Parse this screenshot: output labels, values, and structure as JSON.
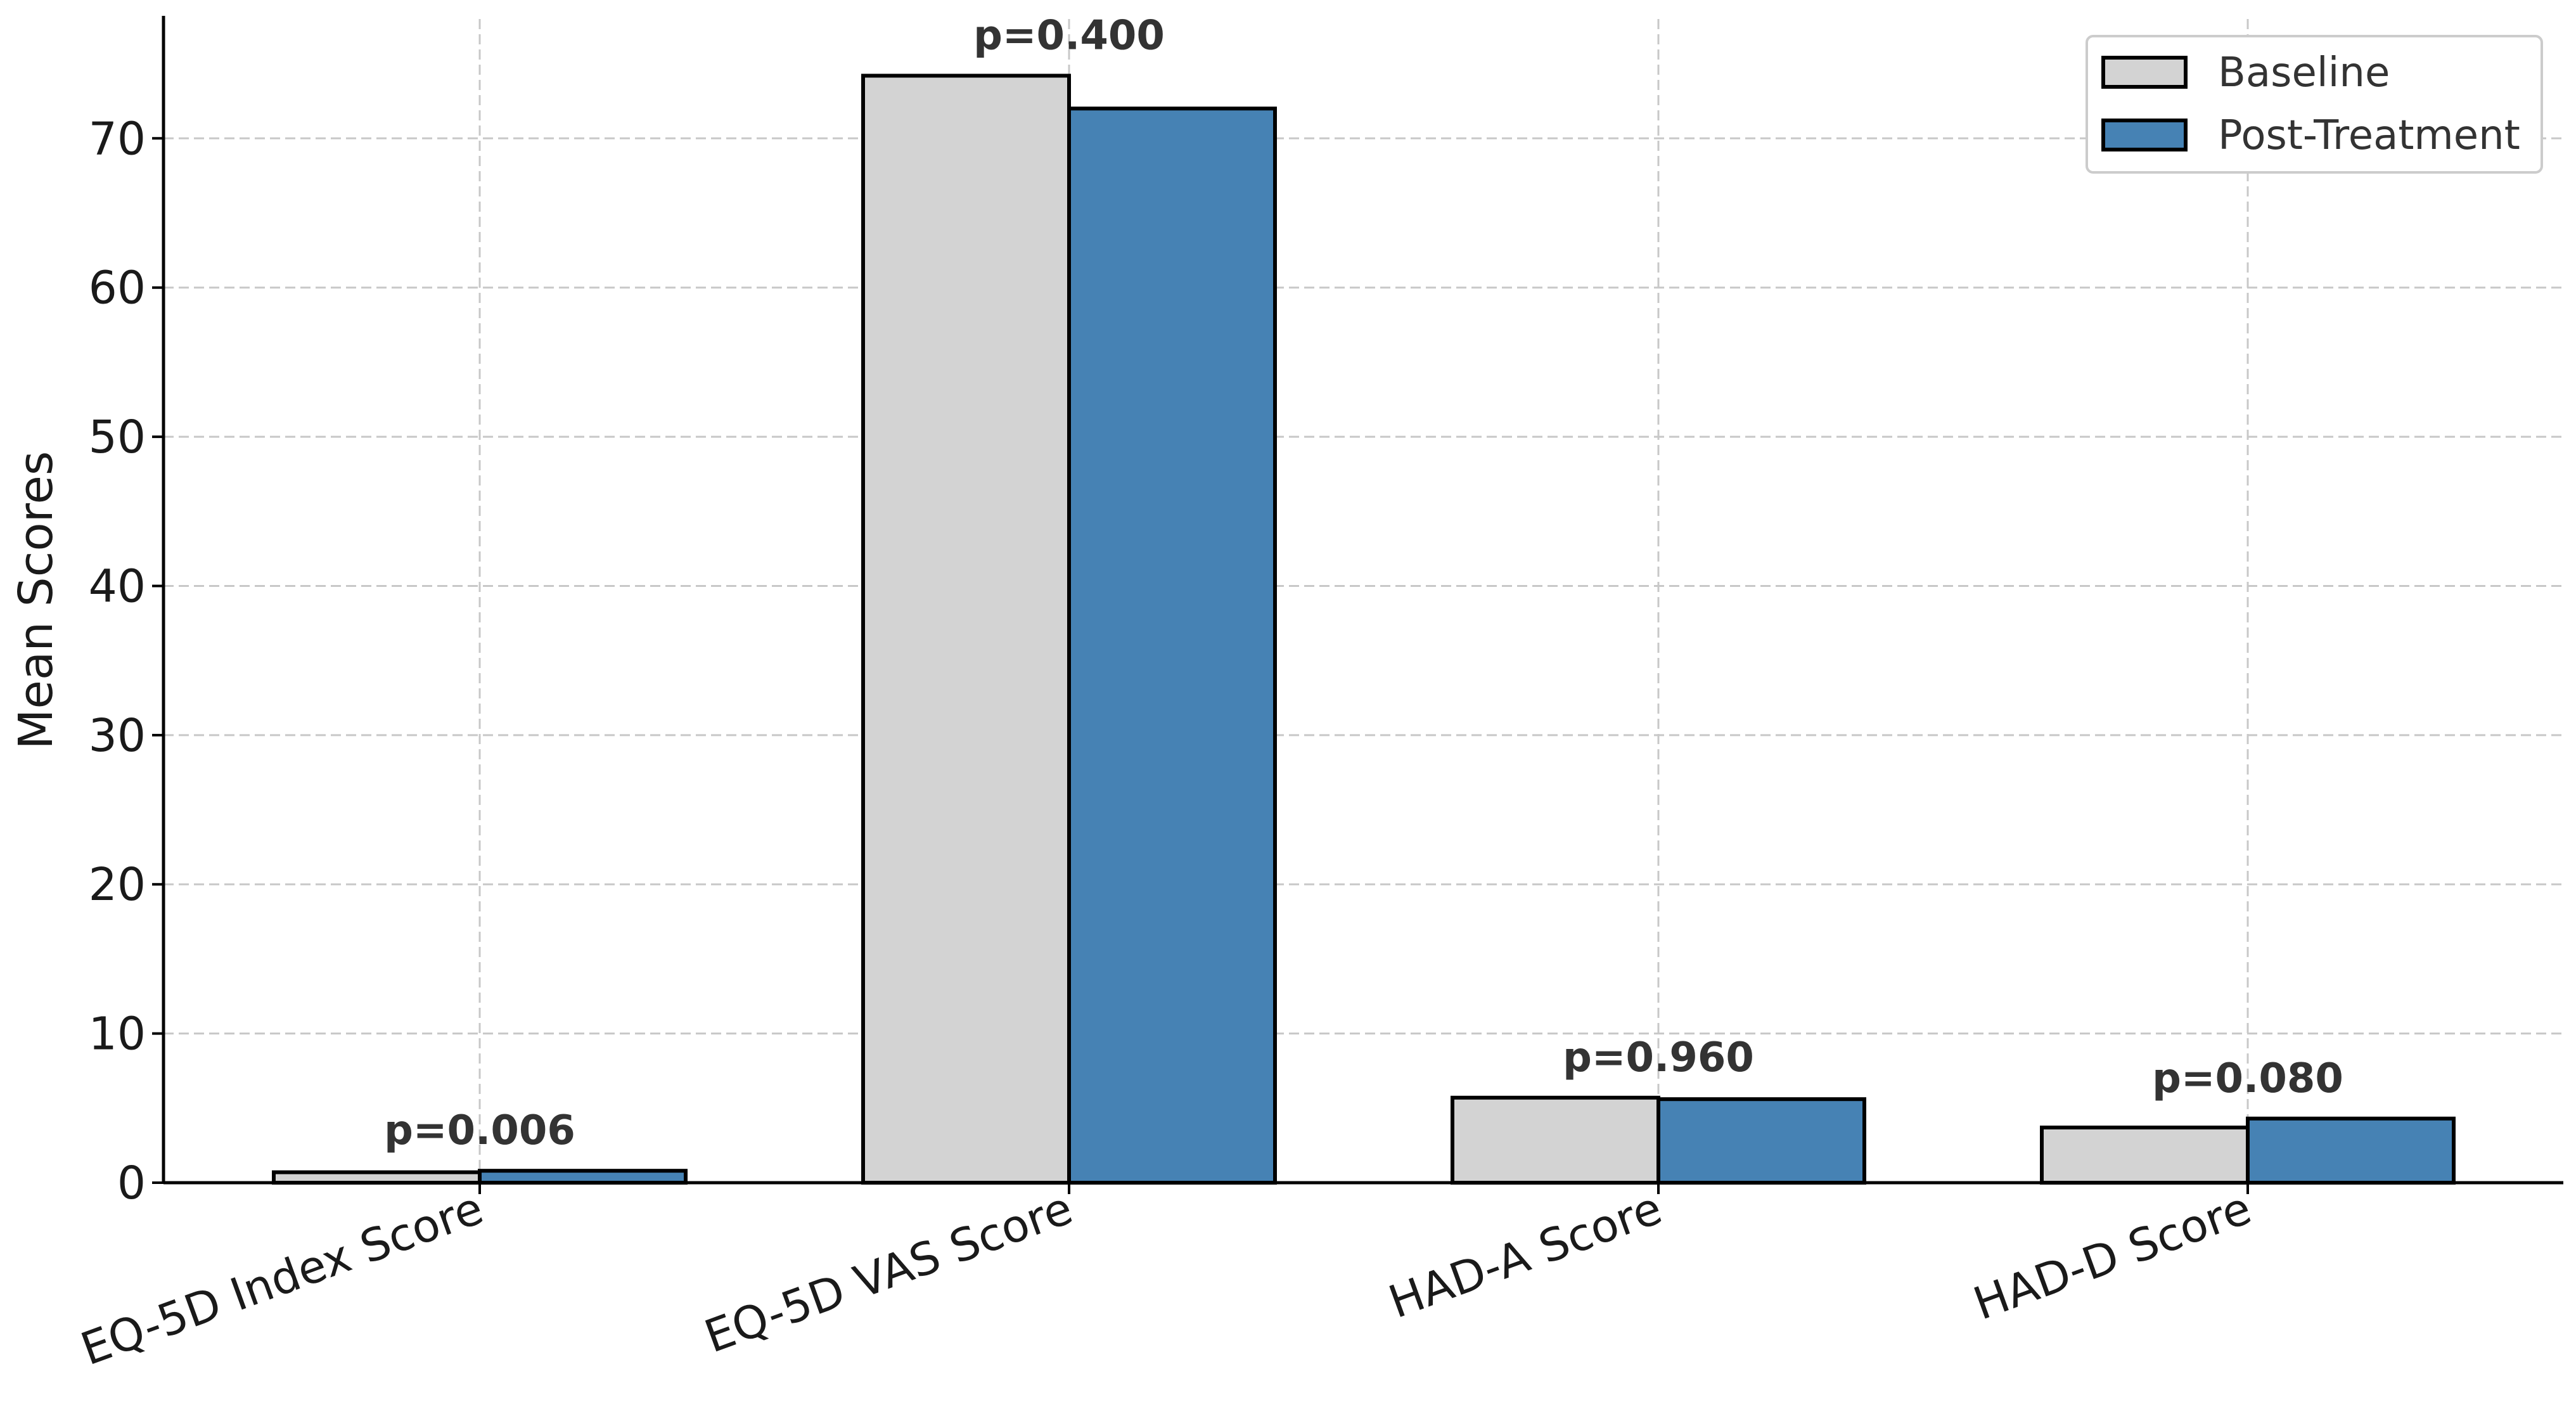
{
  "chart_data": {
    "type": "bar",
    "title": "",
    "xlabel": "",
    "ylabel": "Mean Scores",
    "ylim": [
      0,
      78
    ],
    "yticks": [
      0,
      10,
      20,
      30,
      40,
      50,
      60,
      70
    ],
    "grid": true,
    "legend_position": "top-right",
    "categories": [
      "EQ-5D Index Score",
      "EQ-5D VAS Score",
      "HAD-A Score",
      "HAD-D Score"
    ],
    "series": [
      {
        "name": "Baseline",
        "color": "#d3d3d3",
        "values": [
          0.7,
          74.2,
          5.7,
          3.7
        ]
      },
      {
        "name": "Post-Treatment",
        "color": "#4682b4",
        "values": [
          0.8,
          72.0,
          5.6,
          4.3
        ]
      }
    ],
    "annotations": [
      "p=0.006",
      "p=0.400",
      "p=0.960",
      "p=0.080"
    ]
  }
}
